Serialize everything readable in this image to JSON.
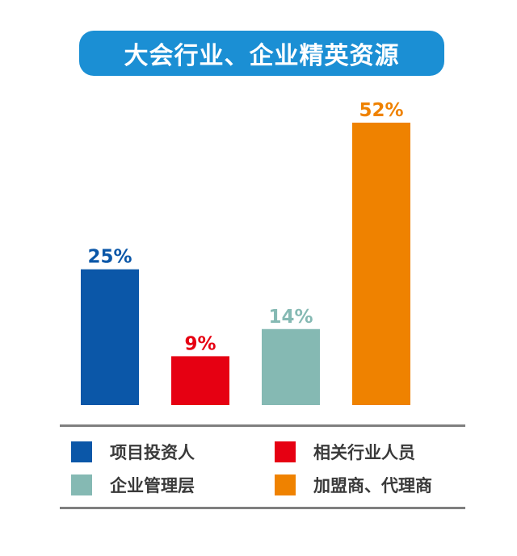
{
  "title": "大会行业、企业精英资源",
  "chart_data": {
    "type": "bar",
    "categories": [
      "项目投资人",
      "相关行业人员",
      "企业管理层",
      "加盟商、代理商"
    ],
    "values": [
      25,
      9,
      14,
      52
    ],
    "value_labels": [
      "25%",
      "9%",
      "14%",
      "52%"
    ],
    "colors": [
      "#0b57a8",
      "#e60012",
      "#85b9b3",
      "#ef8200"
    ],
    "ylim": [
      0,
      52
    ],
    "grid": false,
    "legend_position": "bottom"
  },
  "legend": [
    {
      "label": "项目投资人",
      "color": "#0b57a8"
    },
    {
      "label": "相关行业人员",
      "color": "#e60012"
    },
    {
      "label": "企业管理层",
      "color": "#85b9b3"
    },
    {
      "label": "加盟商、代理商",
      "color": "#ef8200"
    }
  ]
}
